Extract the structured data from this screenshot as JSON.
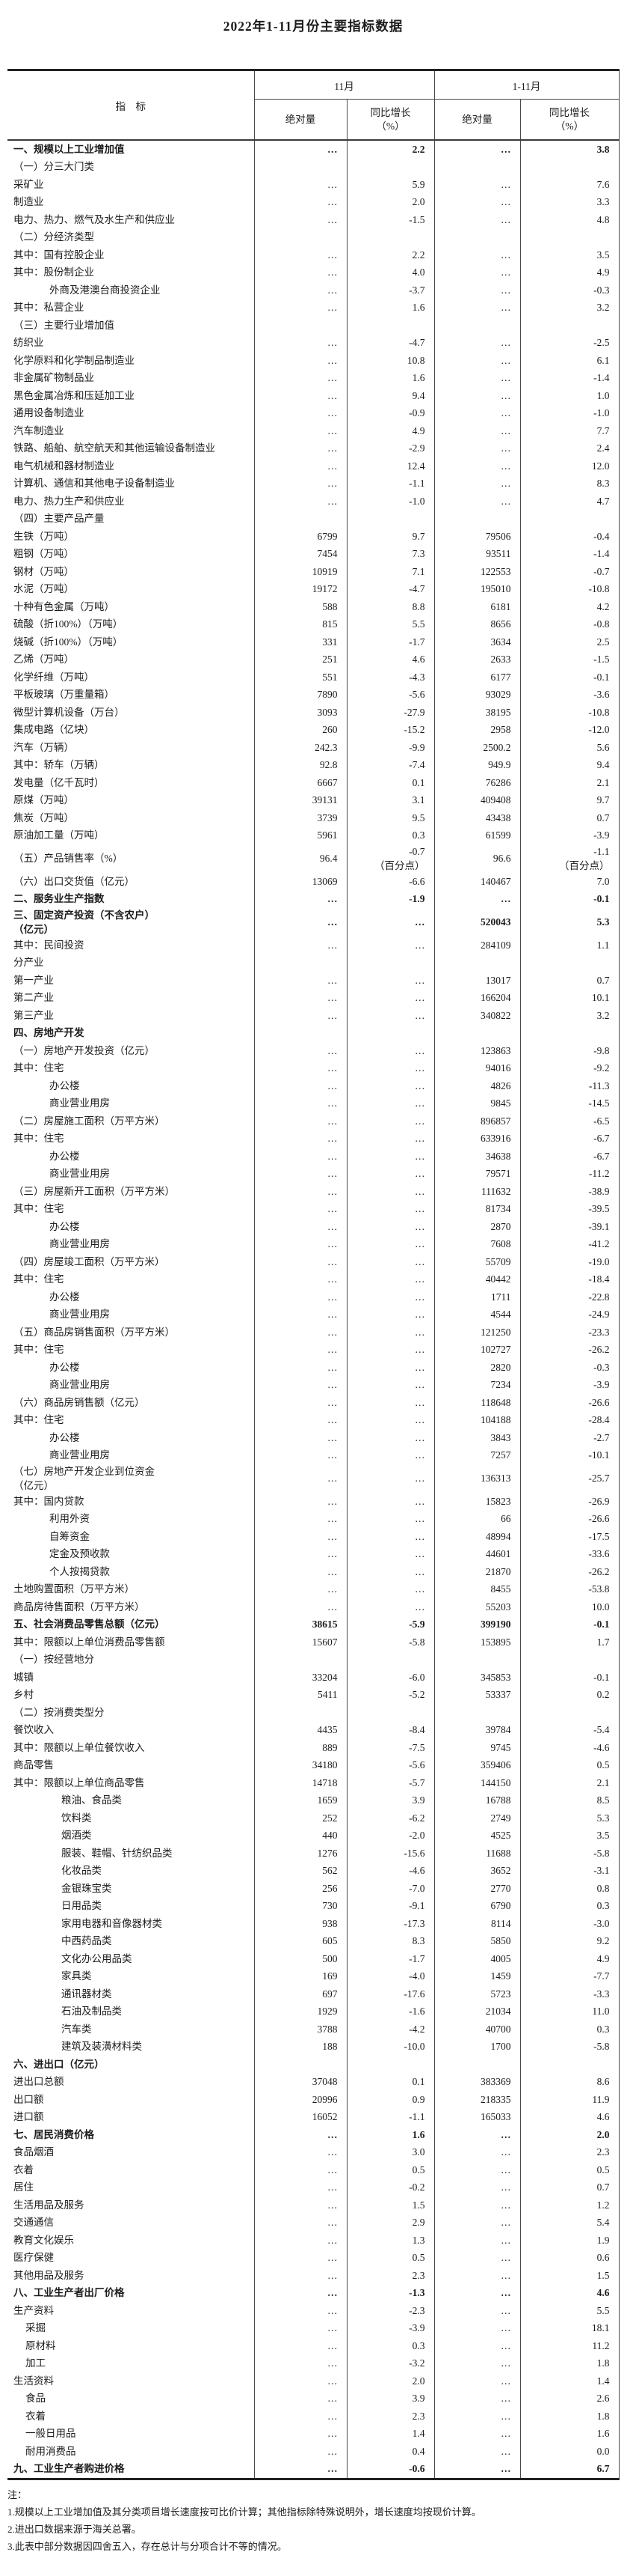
{
  "title": "2022年1-11月份主要指标数据",
  "table": {
    "header": {
      "indicator": "指　标",
      "group1": "11月",
      "group2": "1-11月",
      "abs": "绝对量",
      "yoy": "同比增长\n（%）"
    },
    "rows": [
      {
        "label": "一、规模以上工业增加值",
        "bold": true,
        "v": [
          "…",
          "2.2",
          "…",
          "3.8"
        ]
      },
      {
        "label": "（一）分三大门类",
        "v": [
          "",
          "",
          "",
          ""
        ]
      },
      {
        "label": "采矿业",
        "v": [
          "…",
          "5.9",
          "…",
          "7.6"
        ]
      },
      {
        "label": "制造业",
        "v": [
          "…",
          "2.0",
          "…",
          "3.3"
        ]
      },
      {
        "label": "电力、热力、燃气及水生产和供应业",
        "v": [
          "…",
          "-1.5",
          "…",
          "4.8"
        ]
      },
      {
        "label": "（二）分经济类型",
        "v": [
          "",
          "",
          "",
          ""
        ]
      },
      {
        "label": "其中：国有控股企业",
        "v": [
          "…",
          "2.2",
          "…",
          "3.5"
        ]
      },
      {
        "label": "其中：股份制企业",
        "v": [
          "…",
          "4.0",
          "…",
          "4.9"
        ]
      },
      {
        "label": "外商及港澳台商投资企业",
        "indent": 2,
        "v": [
          "…",
          "-3.7",
          "…",
          "-0.3"
        ]
      },
      {
        "label": "其中：私营企业",
        "v": [
          "…",
          "1.6",
          "…",
          "3.2"
        ]
      },
      {
        "label": "（三）主要行业增加值",
        "v": [
          "",
          "",
          "",
          ""
        ]
      },
      {
        "label": "纺织业",
        "v": [
          "…",
          "-4.7",
          "…",
          "-2.5"
        ]
      },
      {
        "label": "化学原料和化学制品制造业",
        "v": [
          "…",
          "10.8",
          "…",
          "6.1"
        ]
      },
      {
        "label": "非金属矿物制品业",
        "v": [
          "…",
          "1.6",
          "…",
          "-1.4"
        ]
      },
      {
        "label": "黑色金属冶炼和压延加工业",
        "v": [
          "…",
          "9.4",
          "…",
          "1.0"
        ]
      },
      {
        "label": "通用设备制造业",
        "v": [
          "…",
          "-0.9",
          "…",
          "-1.0"
        ]
      },
      {
        "label": "汽车制造业",
        "v": [
          "…",
          "4.9",
          "…",
          "7.7"
        ]
      },
      {
        "label": "铁路、船舶、航空航天和其他运输设备制造业",
        "v": [
          "…",
          "-2.9",
          "…",
          "2.4"
        ]
      },
      {
        "label": "电气机械和器材制造业",
        "v": [
          "…",
          "12.4",
          "…",
          "12.0"
        ]
      },
      {
        "label": "计算机、通信和其他电子设备制造业",
        "v": [
          "…",
          "-1.1",
          "…",
          "8.3"
        ]
      },
      {
        "label": "电力、热力生产和供应业",
        "v": [
          "…",
          "-1.0",
          "…",
          "4.7"
        ]
      },
      {
        "label": "（四）主要产品产量",
        "v": [
          "",
          "",
          "",
          ""
        ]
      },
      {
        "label": "生铁（万吨）",
        "v": [
          "6799",
          "9.7",
          "79506",
          "-0.4"
        ]
      },
      {
        "label": "粗钢（万吨）",
        "v": [
          "7454",
          "7.3",
          "93511",
          "-1.4"
        ]
      },
      {
        "label": "钢材（万吨）",
        "v": [
          "10919",
          "7.1",
          "122553",
          "-0.7"
        ]
      },
      {
        "label": "水泥（万吨）",
        "v": [
          "19172",
          "-4.7",
          "195010",
          "-10.8"
        ]
      },
      {
        "label": "十种有色金属（万吨）",
        "v": [
          "588",
          "8.8",
          "6181",
          "4.2"
        ]
      },
      {
        "label": "硫酸（折100%）（万吨）",
        "v": [
          "815",
          "5.5",
          "8656",
          "-0.8"
        ]
      },
      {
        "label": "烧碱（折100%）（万吨）",
        "v": [
          "331",
          "-1.7",
          "3634",
          "2.5"
        ]
      },
      {
        "label": "乙烯（万吨）",
        "v": [
          "251",
          "4.6",
          "2633",
          "-1.5"
        ]
      },
      {
        "label": "化学纤维（万吨）",
        "v": [
          "551",
          "-4.3",
          "6177",
          "-0.1"
        ]
      },
      {
        "label": "平板玻璃（万重量箱）",
        "v": [
          "7890",
          "-5.6",
          "93029",
          "-3.6"
        ]
      },
      {
        "label": "微型计算机设备（万台）",
        "v": [
          "3093",
          "-27.9",
          "38195",
          "-10.8"
        ]
      },
      {
        "label": "集成电路（亿块）",
        "v": [
          "260",
          "-15.2",
          "2958",
          "-12.0"
        ]
      },
      {
        "label": "汽车（万辆）",
        "v": [
          "242.3",
          "-9.9",
          "2500.2",
          "5.6"
        ]
      },
      {
        "label": "其中：轿车（万辆）",
        "v": [
          "92.8",
          "-7.4",
          "949.9",
          "9.4"
        ]
      },
      {
        "label": "发电量（亿千瓦时）",
        "v": [
          "6667",
          "0.1",
          "76286",
          "2.1"
        ]
      },
      {
        "label": "原煤（万吨）",
        "v": [
          "39131",
          "3.1",
          "409408",
          "9.7"
        ]
      },
      {
        "label": "焦炭（万吨）",
        "v": [
          "3739",
          "9.5",
          "43438",
          "0.7"
        ]
      },
      {
        "label": "原油加工量（万吨）",
        "v": [
          "5961",
          "0.3",
          "61599",
          "-3.9"
        ]
      },
      {
        "label": "（五）产品销售率（%）",
        "v": [
          "96.4",
          "-0.7\n（百分点）",
          "96.6",
          "-1.1\n（百分点）"
        ]
      },
      {
        "label": "（六）出口交货值（亿元）",
        "v": [
          "13069",
          "-6.6",
          "140467",
          "7.0"
        ]
      },
      {
        "label": "二、服务业生产指数",
        "bold": true,
        "v": [
          "…",
          "-1.9",
          "…",
          "-0.1"
        ]
      },
      {
        "label": "三、固定资产投资（不含农户）\n（亿元）",
        "bold": true,
        "v": [
          "…",
          "…",
          "520043",
          "5.3"
        ]
      },
      {
        "label": "其中：民间投资",
        "v": [
          "…",
          "…",
          "284109",
          "1.1"
        ]
      },
      {
        "label": "分产业",
        "v": [
          "",
          "",
          "",
          ""
        ]
      },
      {
        "label": "第一产业",
        "v": [
          "…",
          "…",
          "13017",
          "0.7"
        ]
      },
      {
        "label": "第二产业",
        "v": [
          "…",
          "…",
          "166204",
          "10.1"
        ]
      },
      {
        "label": "第三产业",
        "v": [
          "…",
          "…",
          "340822",
          "3.2"
        ]
      },
      {
        "label": "四、房地产开发",
        "bold": true,
        "v": [
          "",
          "",
          "",
          ""
        ]
      },
      {
        "label": "（一）房地产开发投资（亿元）",
        "v": [
          "…",
          "…",
          "123863",
          "-9.8"
        ]
      },
      {
        "label": "其中：住宅",
        "v": [
          "…",
          "…",
          "94016",
          "-9.2"
        ]
      },
      {
        "label": "办公楼",
        "indent": 2,
        "v": [
          "…",
          "…",
          "4826",
          "-11.3"
        ]
      },
      {
        "label": "商业营业用房",
        "indent": 2,
        "v": [
          "…",
          "…",
          "9845",
          "-14.5"
        ]
      },
      {
        "label": "（二）房屋施工面积（万平方米）",
        "v": [
          "…",
          "…",
          "896857",
          "-6.5"
        ]
      },
      {
        "label": "其中：住宅",
        "v": [
          "…",
          "…",
          "633916",
          "-6.7"
        ]
      },
      {
        "label": "办公楼",
        "indent": 2,
        "v": [
          "…",
          "…",
          "34638",
          "-6.7"
        ]
      },
      {
        "label": "商业营业用房",
        "indent": 2,
        "v": [
          "…",
          "…",
          "79571",
          "-11.2"
        ]
      },
      {
        "label": "（三）房屋新开工面积（万平方米）",
        "v": [
          "…",
          "…",
          "111632",
          "-38.9"
        ]
      },
      {
        "label": "其中：住宅",
        "v": [
          "…",
          "…",
          "81734",
          "-39.5"
        ]
      },
      {
        "label": "办公楼",
        "indent": 2,
        "v": [
          "…",
          "…",
          "2870",
          "-39.1"
        ]
      },
      {
        "label": "商业营业用房",
        "indent": 2,
        "v": [
          "…",
          "…",
          "7608",
          "-41.2"
        ]
      },
      {
        "label": "（四）房屋竣工面积（万平方米）",
        "v": [
          "…",
          "…",
          "55709",
          "-19.0"
        ]
      },
      {
        "label": "其中：住宅",
        "v": [
          "…",
          "…",
          "40442",
          "-18.4"
        ]
      },
      {
        "label": "办公楼",
        "indent": 2,
        "v": [
          "…",
          "…",
          "1711",
          "-22.8"
        ]
      },
      {
        "label": "商业营业用房",
        "indent": 2,
        "v": [
          "…",
          "…",
          "4544",
          "-24.9"
        ]
      },
      {
        "label": "（五）商品房销售面积（万平方米）",
        "v": [
          "…",
          "…",
          "121250",
          "-23.3"
        ]
      },
      {
        "label": "其中：住宅",
        "v": [
          "…",
          "…",
          "102727",
          "-26.2"
        ]
      },
      {
        "label": "办公楼",
        "indent": 2,
        "v": [
          "…",
          "…",
          "2820",
          "-0.3"
        ]
      },
      {
        "label": "商业营业用房",
        "indent": 2,
        "v": [
          "…",
          "…",
          "7234",
          "-3.9"
        ]
      },
      {
        "label": "（六）商品房销售额（亿元）",
        "v": [
          "…",
          "…",
          "118648",
          "-26.6"
        ]
      },
      {
        "label": "其中：住宅",
        "v": [
          "…",
          "…",
          "104188",
          "-28.4"
        ]
      },
      {
        "label": "办公楼",
        "indent": 2,
        "v": [
          "…",
          "…",
          "3843",
          "-2.7"
        ]
      },
      {
        "label": "商业营业用房",
        "indent": 2,
        "v": [
          "…",
          "…",
          "7257",
          "-10.1"
        ]
      },
      {
        "label": "（七）房地产开发企业到位资金\n（亿元）",
        "v": [
          "…",
          "…",
          "136313",
          "-25.7"
        ]
      },
      {
        "label": "其中：国内贷款",
        "v": [
          "…",
          "…",
          "15823",
          "-26.9"
        ]
      },
      {
        "label": "利用外资",
        "indent": 2,
        "v": [
          "…",
          "…",
          "66",
          "-26.6"
        ]
      },
      {
        "label": "自筹资金",
        "indent": 2,
        "v": [
          "…",
          "…",
          "48994",
          "-17.5"
        ]
      },
      {
        "label": "定金及预收款",
        "indent": 2,
        "v": [
          "…",
          "…",
          "44601",
          "-33.6"
        ]
      },
      {
        "label": "个人按揭贷款",
        "indent": 2,
        "v": [
          "…",
          "…",
          "21870",
          "-26.2"
        ]
      },
      {
        "label": "土地购置面积（万平方米）",
        "v": [
          "…",
          "…",
          "8455",
          "-53.8"
        ]
      },
      {
        "label": "商品房待售面积（万平方米）",
        "v": [
          "…",
          "…",
          "55203",
          "10.0"
        ]
      },
      {
        "label": "五、社会消费品零售总额（亿元）",
        "bold": true,
        "v": [
          "38615",
          "-5.9",
          "399190",
          "-0.1"
        ]
      },
      {
        "label": "其中：限额以上单位消费品零售额",
        "v": [
          "15607",
          "-5.8",
          "153895",
          "1.7"
        ]
      },
      {
        "label": "（一）按经营地分",
        "v": [
          "",
          "",
          "",
          ""
        ]
      },
      {
        "label": "城镇",
        "v": [
          "33204",
          "-6.0",
          "345853",
          "-0.1"
        ]
      },
      {
        "label": "乡村",
        "v": [
          "5411",
          "-5.2",
          "53337",
          "0.2"
        ]
      },
      {
        "label": "（二）按消费类型分",
        "v": [
          "",
          "",
          "",
          ""
        ]
      },
      {
        "label": "餐饮收入",
        "v": [
          "4435",
          "-8.4",
          "39784",
          "-5.4"
        ]
      },
      {
        "label": "其中：限额以上单位餐饮收入",
        "v": [
          "889",
          "-7.5",
          "9745",
          "-4.6"
        ]
      },
      {
        "label": "商品零售",
        "v": [
          "34180",
          "-5.6",
          "359406",
          "0.5"
        ]
      },
      {
        "label": "其中：限额以上单位商品零售",
        "v": [
          "14718",
          "-5.7",
          "144150",
          "2.1"
        ]
      },
      {
        "label": "粮油、食品类",
        "indent": 3,
        "v": [
          "1659",
          "3.9",
          "16788",
          "8.5"
        ]
      },
      {
        "label": "饮料类",
        "indent": 3,
        "v": [
          "252",
          "-6.2",
          "2749",
          "5.3"
        ]
      },
      {
        "label": "烟酒类",
        "indent": 3,
        "v": [
          "440",
          "-2.0",
          "4525",
          "3.5"
        ]
      },
      {
        "label": "服装、鞋帽、针纺织品类",
        "indent": 3,
        "v": [
          "1276",
          "-15.6",
          "11688",
          "-5.8"
        ]
      },
      {
        "label": "化妆品类",
        "indent": 3,
        "v": [
          "562",
          "-4.6",
          "3652",
          "-3.1"
        ]
      },
      {
        "label": "金银珠宝类",
        "indent": 3,
        "v": [
          "256",
          "-7.0",
          "2770",
          "0.8"
        ]
      },
      {
        "label": "日用品类",
        "indent": 3,
        "v": [
          "730",
          "-9.1",
          "6790",
          "0.3"
        ]
      },
      {
        "label": "家用电器和音像器材类",
        "indent": 3,
        "v": [
          "938",
          "-17.3",
          "8114",
          "-3.0"
        ]
      },
      {
        "label": "中西药品类",
        "indent": 3,
        "v": [
          "605",
          "8.3",
          "5850",
          "9.2"
        ]
      },
      {
        "label": "文化办公用品类",
        "indent": 3,
        "v": [
          "500",
          "-1.7",
          "4005",
          "4.9"
        ]
      },
      {
        "label": "家具类",
        "indent": 3,
        "v": [
          "169",
          "-4.0",
          "1459",
          "-7.7"
        ]
      },
      {
        "label": "通讯器材类",
        "indent": 3,
        "v": [
          "697",
          "-17.6",
          "5723",
          "-3.3"
        ]
      },
      {
        "label": "石油及制品类",
        "indent": 3,
        "v": [
          "1929",
          "-1.6",
          "21034",
          "11.0"
        ]
      },
      {
        "label": "汽车类",
        "indent": 3,
        "v": [
          "3788",
          "-4.2",
          "40700",
          "0.3"
        ]
      },
      {
        "label": "建筑及装潢材料类",
        "indent": 3,
        "v": [
          "188",
          "-10.0",
          "1700",
          "-5.8"
        ]
      },
      {
        "label": "六、进出口（亿元）",
        "bold": true,
        "v": [
          "",
          "",
          "",
          ""
        ]
      },
      {
        "label": "进出口总额",
        "v": [
          "37048",
          "0.1",
          "383369",
          "8.6"
        ]
      },
      {
        "label": "出口额",
        "v": [
          "20996",
          "0.9",
          "218335",
          "11.9"
        ]
      },
      {
        "label": "进口额",
        "v": [
          "16052",
          "-1.1",
          "165033",
          "4.6"
        ]
      },
      {
        "label": "七、居民消费价格",
        "bold": true,
        "v": [
          "…",
          "1.6",
          "…",
          "2.0"
        ]
      },
      {
        "label": "食品烟酒",
        "v": [
          "…",
          "3.0",
          "…",
          "2.3"
        ]
      },
      {
        "label": "衣着",
        "v": [
          "…",
          "0.5",
          "…",
          "0.5"
        ]
      },
      {
        "label": "居住",
        "v": [
          "…",
          "-0.2",
          "…",
          "0.7"
        ]
      },
      {
        "label": "生活用品及服务",
        "v": [
          "…",
          "1.5",
          "…",
          "1.2"
        ]
      },
      {
        "label": "交通通信",
        "v": [
          "…",
          "2.9",
          "…",
          "5.4"
        ]
      },
      {
        "label": "教育文化娱乐",
        "v": [
          "…",
          "1.3",
          "…",
          "1.9"
        ]
      },
      {
        "label": "医疗保健",
        "v": [
          "…",
          "0.5",
          "…",
          "0.6"
        ]
      },
      {
        "label": "其他用品及服务",
        "v": [
          "…",
          "2.3",
          "…",
          "1.5"
        ]
      },
      {
        "label": "八、工业生产者出厂价格",
        "bold": true,
        "v": [
          "…",
          "-1.3",
          "…",
          "4.6"
        ]
      },
      {
        "label": "生产资料",
        "v": [
          "…",
          "-2.3",
          "…",
          "5.5"
        ]
      },
      {
        "label": "采掘",
        "indent": 1,
        "v": [
          "…",
          "-3.9",
          "…",
          "18.1"
        ]
      },
      {
        "label": "原材料",
        "indent": 1,
        "v": [
          "…",
          "0.3",
          "…",
          "11.2"
        ]
      },
      {
        "label": "加工",
        "indent": 1,
        "v": [
          "…",
          "-3.2",
          "…",
          "1.8"
        ]
      },
      {
        "label": "生活资料",
        "v": [
          "…",
          "2.0",
          "…",
          "1.4"
        ]
      },
      {
        "label": "食品",
        "indent": 1,
        "v": [
          "…",
          "3.9",
          "…",
          "2.6"
        ]
      },
      {
        "label": "衣着",
        "indent": 1,
        "v": [
          "…",
          "2.3",
          "…",
          "1.8"
        ]
      },
      {
        "label": "一般日用品",
        "indent": 1,
        "v": [
          "…",
          "1.4",
          "…",
          "1.6"
        ]
      },
      {
        "label": "耐用消费品",
        "indent": 1,
        "v": [
          "…",
          "0.4",
          "…",
          "0.0"
        ]
      },
      {
        "label": "九、工业生产者购进价格",
        "bold": true,
        "v": [
          "…",
          "-0.6",
          "…",
          "6.7"
        ]
      }
    ]
  },
  "notes": [
    "注：",
    "1.规模以上工业增加值及其分类项目增长速度按可比价计算；其他指标除特殊说明外，增长速度均按现价计算。",
    "2.进出口数据来源于海关总署。",
    "3.此表中部分数据因四舍五入，存在总计与分项合计不等的情况。"
  ]
}
